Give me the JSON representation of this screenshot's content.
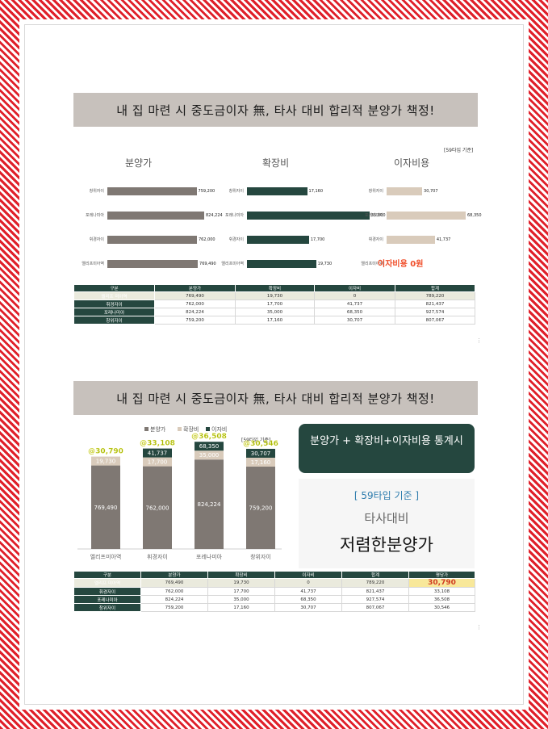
{
  "banner1": "내 집 마련 시 중도금이자 無, 타사 대비 합리적 분양가 책정!",
  "banner2": "내 집 마련 시 중도금이자 無, 타사 대비 합리적 분양가 책정!",
  "top_note": "[59타입 기준]",
  "col_titles": [
    "분양가",
    "확장비",
    "이자비용"
  ],
  "zero_label": "이자비용 0원",
  "colors": {
    "dark_green": "#25473f",
    "grey_bar": "#7f7873",
    "beige_bar": "#d9cbbb",
    "accent_red": "#f04e2a",
    "highlight_yellow": "#f8e89a"
  },
  "chart_data": [
    {
      "type": "bar",
      "orientation": "horizontal",
      "categories": [
        "창위자이",
        "포레나미아",
        "휘경자이",
        "엘리프미아역"
      ],
      "panels": [
        {
          "title": "분양가",
          "values": [
            759200,
            824224,
            762000,
            769490
          ],
          "value_labels": [
            "759,200",
            "824,224",
            "762,000",
            "769,490"
          ]
        },
        {
          "title": "확장비",
          "values": [
            17160,
            35000,
            17700,
            19730
          ],
          "value_labels": [
            "17,160",
            "35,000",
            "17,700",
            "19,730"
          ]
        },
        {
          "title": "이자비용",
          "values": [
            30707,
            68350,
            41737,
            0
          ],
          "value_labels": [
            "30,707",
            "68,350",
            "41,737",
            ""
          ]
        }
      ]
    },
    {
      "type": "bar",
      "stacked": true,
      "categories": [
        "엘리프미아역",
        "휘경자이",
        "포레나미아",
        "창위자이"
      ],
      "legend": [
        "분양가",
        "확장비",
        "이자비"
      ],
      "note": "[59타입 기준]",
      "series": [
        {
          "name": "분양가",
          "values": [
            769490,
            762000,
            824224,
            759200
          ],
          "labels": [
            "769,490",
            "762,000",
            "824,224",
            "759,200"
          ]
        },
        {
          "name": "확장비",
          "values": [
            19730,
            17700,
            35000,
            17160
          ],
          "labels": [
            "19,730",
            "17,700",
            "35,000",
            "17,160"
          ]
        },
        {
          "name": "이자비",
          "values": [
            0,
            41737,
            68350,
            30707
          ],
          "labels": [
            "",
            "41,737",
            "68,350",
            "30,707"
          ]
        }
      ],
      "per_pyeong": [
        "@30,790",
        "@33,108",
        "@36,508",
        "@30,546"
      ]
    }
  ],
  "table1": {
    "headers": [
      "구분",
      "분양가",
      "확장비",
      "이자비",
      "합계"
    ],
    "rows": [
      [
        "엘리프 미아역",
        "769,490",
        "19,730",
        "0",
        "789,220"
      ],
      [
        "휘경자이",
        "762,000",
        "17,700",
        "41,737",
        "821,437"
      ],
      [
        "포레나미아",
        "824,224",
        "35,000",
        "68,350",
        "927,574"
      ],
      [
        "창위자이",
        "759,200",
        "17,160",
        "30,707",
        "807,067"
      ]
    ]
  },
  "table2": {
    "headers": [
      "구분",
      "분양가",
      "확장비",
      "이자비",
      "합계",
      "평당가"
    ],
    "rows": [
      [
        "엘리프 미아역",
        "769,490",
        "19,730",
        "0",
        "789,220",
        "30,790"
      ],
      [
        "휘경자이",
        "762,000",
        "17,700",
        "41,737",
        "821,437",
        "33,108"
      ],
      [
        "포레나미아",
        "824,224",
        "35,000",
        "68,350",
        "927,574",
        "36,508"
      ],
      [
        "창위자이",
        "759,200",
        "17,160",
        "30,707",
        "807,067",
        "30,546"
      ]
    ]
  },
  "green_box": "분양가 + 확장비+이자비용 통계시",
  "panel": {
    "line1": "[ 59타입 기준 ]",
    "line2": "타사대비",
    "line3": "저렴한분양가"
  },
  "dots": "⋮"
}
